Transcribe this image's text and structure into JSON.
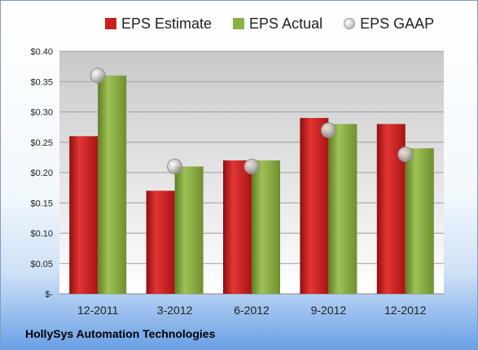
{
  "company": "HollySys Automation Technologies",
  "colors": {
    "estimate": "#cc1f1f",
    "actual": "#8cb043",
    "gaap": "#bdbdbd"
  },
  "chart_data": {
    "type": "bar",
    "categories": [
      "12-2011",
      "3-2012",
      "6-2012",
      "9-2012",
      "12-2012"
    ],
    "series": [
      {
        "name": "EPS Estimate",
        "values": [
          0.26,
          0.17,
          0.22,
          0.29,
          0.28
        ]
      },
      {
        "name": "EPS Actual",
        "values": [
          0.36,
          0.21,
          0.22,
          0.28,
          0.24
        ]
      },
      {
        "name": "EPS GAAP",
        "style": "marker",
        "values": [
          0.36,
          0.21,
          0.21,
          0.27,
          0.23
        ]
      }
    ],
    "y_ticks": [
      "$-",
      "$0.05",
      "$0.10",
      "$0.15",
      "$0.20",
      "$0.25",
      "$0.30",
      "$0.35",
      "$0.40"
    ],
    "ylim": [
      0,
      0.4
    ],
    "grid": true,
    "legend": "top"
  }
}
